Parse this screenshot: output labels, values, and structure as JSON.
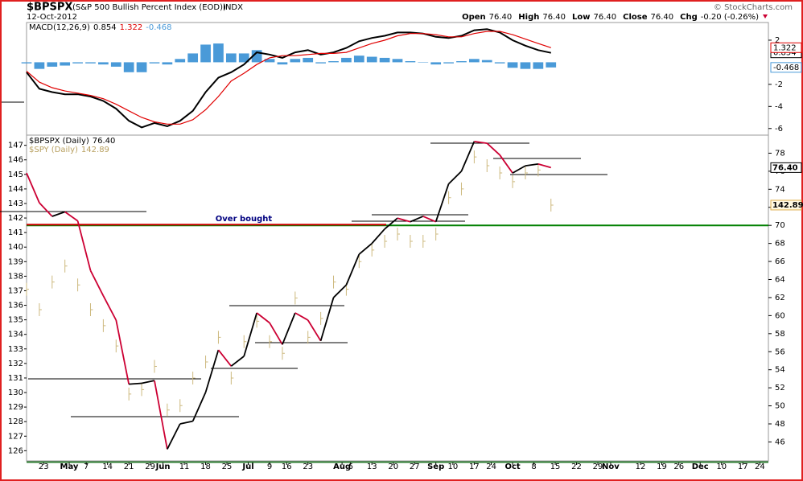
{
  "header": {
    "symbol": "$BPSPX",
    "description": "(S&P 500 Bullish Percent Index (EOD))",
    "exchange": "INDX",
    "date": "12-Oct-2012",
    "quote": [
      {
        "label": "Open",
        "value": "76.40"
      },
      {
        "label": "High",
        "value": "76.40"
      },
      {
        "label": "Low",
        "value": "76.40"
      },
      {
        "label": "Close",
        "value": "76.40"
      },
      {
        "label": "Chg",
        "value": "-0.20 (-0.26%)"
      }
    ],
    "credit": "© StockCharts.com"
  },
  "chart_data": [
    {
      "type": "macd",
      "title": "MACD(12,26,9)",
      "x": [
        0,
        3,
        6,
        9,
        12,
        15,
        18,
        21,
        24,
        27,
        30,
        33,
        36,
        39,
        42,
        45,
        48,
        51,
        54,
        57,
        60,
        63,
        66,
        69,
        72,
        75,
        78,
        81,
        84,
        87,
        90,
        93,
        96,
        99,
        102,
        105,
        108,
        111,
        114,
        117,
        120,
        123
      ],
      "xlim": [
        0,
        174
      ],
      "ylim": [
        -6.6,
        3.6
      ],
      "yticks": [
        2,
        -2,
        -4,
        -6
      ],
      "series": [
        {
          "style": "line",
          "color": "#000000",
          "values": [
            -0.9,
            -2.4,
            -2.7,
            -2.9,
            -2.9,
            -3.1,
            -3.5,
            -4.2,
            -5.3,
            -5.9,
            -5.5,
            -5.8,
            -5.3,
            -4.4,
            -2.7,
            -1.4,
            -0.9,
            -0.2,
            0.9,
            0.7,
            0.4,
            0.9,
            1.1,
            0.7,
            0.9,
            1.3,
            1.9,
            2.2,
            2.4,
            2.7,
            2.7,
            2.6,
            2.3,
            2.2,
            2.4,
            2.9,
            3.0,
            2.7,
            2.0,
            1.5,
            1.1,
            0.854
          ]
        },
        {
          "style": "line",
          "color": "#e00000",
          "values": [
            -0.8,
            -1.8,
            -2.3,
            -2.6,
            -2.8,
            -3.0,
            -3.3,
            -3.8,
            -4.4,
            -5.0,
            -5.4,
            -5.6,
            -5.6,
            -5.2,
            -4.3,
            -3.1,
            -1.7,
            -1.0,
            -0.2,
            0.4,
            0.6,
            0.6,
            0.7,
            0.8,
            0.8,
            0.9,
            1.3,
            1.7,
            2.0,
            2.4,
            2.6,
            2.6,
            2.5,
            2.3,
            2.3,
            2.6,
            2.8,
            2.8,
            2.5,
            2.1,
            1.7,
            1.322
          ]
        },
        {
          "style": "histogram",
          "color": "#4a9ad8",
          "values": [
            -0.1,
            -0.6,
            -0.4,
            -0.3,
            -0.1,
            -0.1,
            -0.2,
            -0.4,
            -0.9,
            -0.9,
            -0.1,
            -0.2,
            0.3,
            0.8,
            1.6,
            1.7,
            0.8,
            0.8,
            1.1,
            0.3,
            -0.2,
            0.3,
            0.4,
            -0.1,
            0.1,
            0.4,
            0.6,
            0.5,
            0.4,
            0.3,
            0.1,
            0,
            -0.2,
            -0.1,
            0.1,
            0.3,
            0.2,
            -0.1,
            -0.5,
            -0.6,
            -0.6,
            -0.468
          ]
        }
      ]
    },
    {
      "type": "line",
      "x": [
        0,
        3,
        6,
        9,
        12,
        15,
        18,
        21,
        24,
        27,
        30,
        33,
        36,
        39,
        42,
        45,
        48,
        51,
        54,
        57,
        60,
        63,
        66,
        69,
        72,
        75,
        78,
        81,
        84,
        87,
        90,
        93,
        96,
        99,
        102,
        105,
        108,
        111,
        114,
        117,
        120,
        123
      ],
      "xlim": [
        0,
        174
      ],
      "xticks": [
        {
          "value": 4,
          "label": "23"
        },
        {
          "value": 10,
          "label": "May"
        },
        {
          "value": 14,
          "label": "7"
        },
        {
          "value": 19,
          "label": "14"
        },
        {
          "value": 24,
          "label": "21"
        },
        {
          "value": 29,
          "label": "29"
        },
        {
          "value": 32,
          "label": "Jun"
        },
        {
          "value": 37,
          "label": "11"
        },
        {
          "value": 42,
          "label": "18"
        },
        {
          "value": 47,
          "label": "25"
        },
        {
          "value": 52,
          "label": "Jul"
        },
        {
          "value": 57,
          "label": "9"
        },
        {
          "value": 61,
          "label": "16"
        },
        {
          "value": 66,
          "label": "23"
        },
        {
          "value": 74,
          "label": "Aug"
        },
        {
          "value": 76,
          "label": "6"
        },
        {
          "value": 81,
          "label": "13"
        },
        {
          "value": 86,
          "label": "20"
        },
        {
          "value": 91,
          "label": "27"
        },
        {
          "value": 96,
          "label": "Sep"
        },
        {
          "value": 100,
          "label": "10"
        },
        {
          "value": 105,
          "label": "17"
        },
        {
          "value": 109,
          "label": "24"
        },
        {
          "value": 114,
          "label": "Oct"
        },
        {
          "value": 119,
          "label": "8"
        },
        {
          "value": 124,
          "label": "15"
        },
        {
          "value": 129,
          "label": "22"
        },
        {
          "value": 134,
          "label": "29"
        },
        {
          "value": 137,
          "label": "Nov"
        },
        {
          "value": 144,
          "label": "12"
        },
        {
          "value": 149,
          "label": "19"
        },
        {
          "value": 153,
          "label": "26"
        },
        {
          "value": 158,
          "label": "Dec"
        },
        {
          "value": 163,
          "label": "10"
        },
        {
          "value": 168,
          "label": "17"
        },
        {
          "value": 172,
          "label": "24"
        }
      ],
      "ylim": [
        125.3,
        147.7
      ],
      "yticks": [
        126,
        127,
        128,
        129,
        130,
        131,
        132,
        133,
        134,
        135,
        136,
        137,
        138,
        139,
        140,
        141,
        142,
        143,
        144,
        145,
        146,
        147
      ],
      "y2lim": [
        43.9,
        80
      ],
      "y2ticks": [
        46,
        48,
        50,
        52,
        54,
        56,
        58,
        60,
        62,
        64,
        66,
        68,
        70,
        72,
        74,
        76,
        78
      ],
      "series": [
        {
          "name": "$BPSPX (Daily)",
          "axis": "y2",
          "style": "line",
          "color": "#000000",
          "down_color": "#cc0033",
          "last_label": "76.40",
          "values": [
            75.8,
            72.5,
            71,
            71.5,
            70.5,
            65,
            62.2,
            59.5,
            52.4,
            52.5,
            52.8,
            45.2,
            48,
            48.3,
            51.5,
            56.2,
            54.4,
            55.5,
            60.3,
            59.2,
            56.8,
            60.3,
            59.5,
            57.2,
            62,
            63.4,
            66.8,
            68,
            69.6,
            70.8,
            70.4,
            71,
            70.4,
            74.6,
            76,
            79.3,
            79.1,
            77.8,
            75.8,
            76.6,
            76.8,
            76.4
          ]
        },
        {
          "name": "$SPY (Daily)",
          "style": "price-bars",
          "color": "#cdb97e",
          "values": [
            137.1,
            135.7,
            137.6,
            138.7,
            137.4,
            135.7,
            134.6,
            133.2,
            129.9,
            130.2,
            131.8,
            128.8,
            129.1,
            131,
            132.1,
            133.8,
            131,
            133.5,
            134.9,
            133.5,
            132.7,
            136.5,
            133.8,
            135.1,
            137.6,
            137.1,
            139,
            139.8,
            140.4,
            140.9,
            140.4,
            140.4,
            140.9,
            143.4,
            144,
            146.2,
            145.6,
            145.1,
            144.5,
            145.1,
            145.3,
            142.89
          ]
        }
      ],
      "reference_line": {
        "axis": "y2",
        "value": 70,
        "color": "#008000",
        "text": "Over bought"
      }
    }
  ]
}
